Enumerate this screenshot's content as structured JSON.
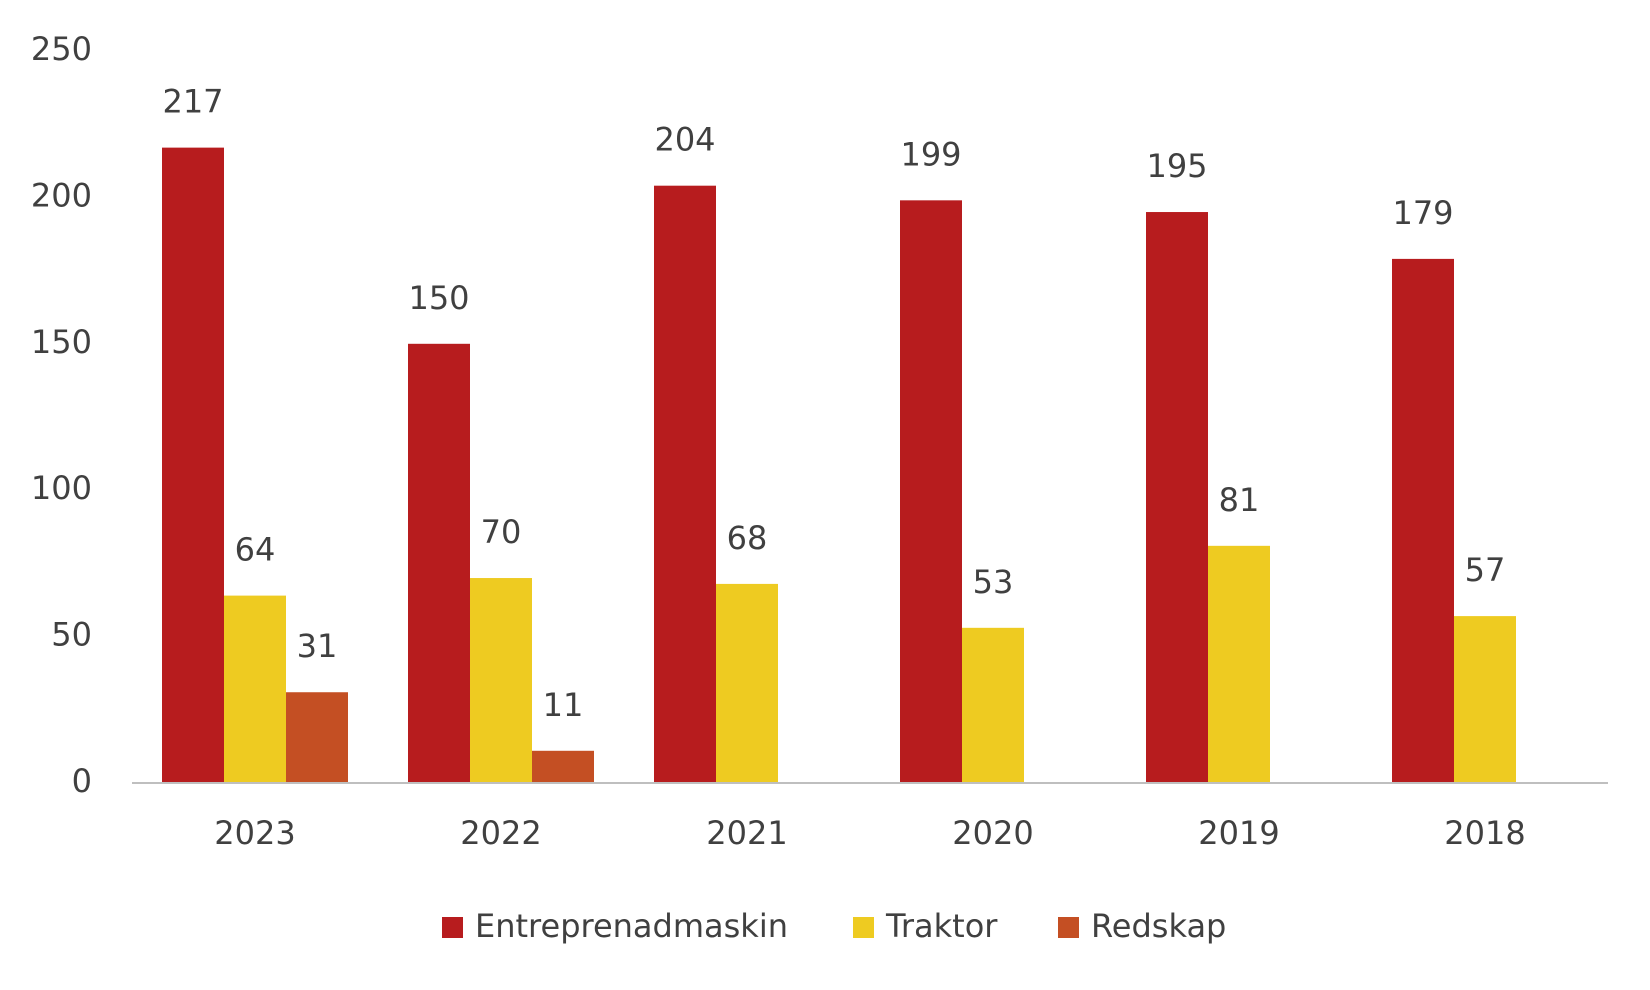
{
  "chart_data": {
    "type": "bar",
    "categories": [
      "2023",
      "2022",
      "2021",
      "2020",
      "2019",
      "2018"
    ],
    "series": [
      {
        "name": "Entreprenadmaskin",
        "color": "#b71c1e",
        "values": [
          217,
          150,
          204,
          199,
          195,
          179
        ]
      },
      {
        "name": "Traktor",
        "color": "#eecb21",
        "values": [
          64,
          70,
          68,
          53,
          81,
          57
        ]
      },
      {
        "name": "Redskap",
        "color": "#c44f23",
        "values": [
          31,
          11,
          null,
          null,
          null,
          null
        ]
      }
    ],
    "ylim": [
      0,
      250
    ],
    "yticks": [
      0,
      50,
      100,
      150,
      200,
      250
    ],
    "grid": false,
    "legend": "bottom"
  }
}
